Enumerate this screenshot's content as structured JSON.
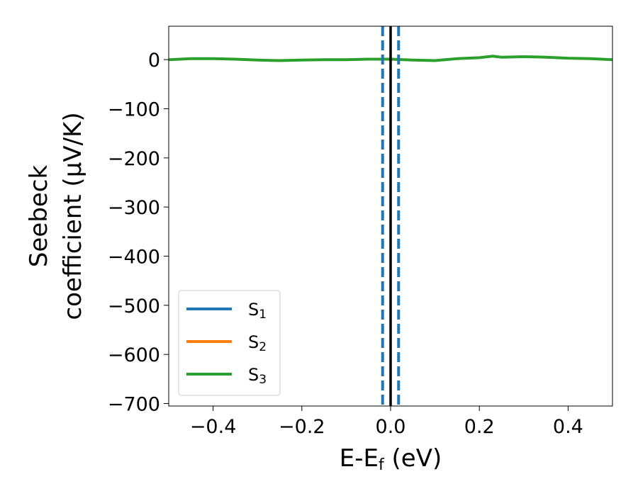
{
  "chart_data": {
    "type": "line",
    "xlabel": {
      "main": "E-E",
      "sub": "f",
      "unit": " (eV)"
    },
    "ylabel": {
      "line1": "Seebeck",
      "line2": "coefficient  (μV/K)"
    },
    "xlim": [
      -0.5,
      0.5
    ],
    "ylim": [
      -705,
      68
    ],
    "xticks": [
      -0.4,
      -0.2,
      0.0,
      0.2,
      0.4
    ],
    "xtick_labels": [
      "−0.4",
      "−0.2",
      "0.0",
      "0.2",
      "0.4"
    ],
    "yticks": [
      0,
      -100,
      -200,
      -300,
      -400,
      -500,
      -600,
      -700
    ],
    "ytick_labels": [
      "0",
      "−100",
      "−200",
      "−300",
      "−400",
      "−500",
      "−600",
      "−700"
    ],
    "grid": false,
    "legend_position": "lower-left",
    "series": [
      {
        "name": "S",
        "sub": "1",
        "color": "#1f77b4",
        "x": [],
        "y": []
      },
      {
        "name": "S",
        "sub": "2",
        "color": "#ff7f0e",
        "x": [],
        "y": []
      },
      {
        "name": "S",
        "sub": "3",
        "color": "#2ca02c",
        "x": [
          -0.5,
          -0.45,
          -0.4,
          -0.35,
          -0.3,
          -0.25,
          -0.2,
          -0.15,
          -0.1,
          -0.05,
          0.0,
          0.05,
          0.1,
          0.15,
          0.2,
          0.23,
          0.25,
          0.3,
          0.35,
          0.4,
          0.45,
          0.5
        ],
        "y": [
          0,
          2,
          2,
          1,
          -1,
          -2,
          -1,
          0,
          0,
          1,
          1,
          -1,
          -2,
          2,
          4,
          7,
          5,
          6,
          5,
          3,
          2,
          0
        ]
      }
    ],
    "vlines": [
      {
        "x": 0.0,
        "color": "#000000",
        "style": "solid"
      },
      {
        "x": -0.018,
        "color": "#1f77b4",
        "style": "dashed"
      },
      {
        "x": 0.018,
        "color": "#1f77b4",
        "style": "dashed"
      }
    ]
  }
}
